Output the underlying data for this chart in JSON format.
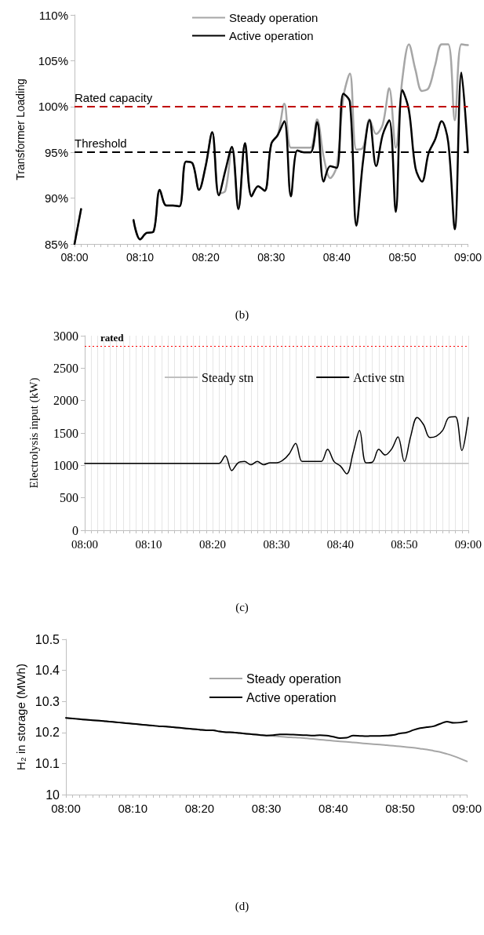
{
  "chart_data": [
    {
      "type": "line",
      "ylabel": "Transformer Loading",
      "categories": [
        "08:00",
        null,
        null,
        null,
        null,
        null,
        null,
        null,
        null,
        null,
        "08:10",
        null,
        null,
        null,
        null,
        null,
        null,
        null,
        null,
        null,
        "08:20",
        null,
        null,
        null,
        null,
        null,
        null,
        null,
        null,
        null,
        "08:30",
        null,
        null,
        null,
        null,
        null,
        null,
        null,
        null,
        null,
        "08:40",
        null,
        null,
        null,
        null,
        null,
        null,
        null,
        null,
        null,
        "08:50",
        null,
        null,
        null,
        null,
        null,
        null,
        null,
        null,
        null,
        "09:00"
      ],
      "series": [
        {
          "name": "Steady operation",
          "color": "#a6a6a6",
          "values": [
            85,
            88.8,
            null,
            null,
            null,
            null,
            null,
            null,
            null,
            87.6,
            85.5,
            86.2,
            86.3,
            90.9,
            89.2,
            89.2,
            89.1,
            94,
            93.8,
            90.9,
            93.5,
            97.2,
            90.5,
            90.8,
            95.6,
            88.8,
            96,
            90.2,
            91.3,
            90.8,
            95.9,
            96.9,
            100.3,
            95.5,
            95.5,
            95.5,
            95.5,
            98.6,
            94.5,
            92.2,
            93.5,
            101,
            103.6,
            95.3,
            95.5,
            98.6,
            97,
            98,
            102,
            95.5,
            103,
            106.8,
            104,
            101.7,
            102,
            104.5,
            106.8,
            106.8,
            98.5,
            106.8,
            106.7
          ]
        },
        {
          "name": "Active operation",
          "color": "#000000",
          "values": [
            85,
            88.8,
            null,
            null,
            null,
            null,
            null,
            null,
            null,
            87.6,
            85.5,
            86.2,
            86.3,
            90.9,
            89.2,
            89.2,
            89.1,
            94,
            93.8,
            90.9,
            93.5,
            97.2,
            90.3,
            93,
            95.6,
            88.8,
            96,
            90.2,
            91.3,
            90.8,
            95.9,
            96.9,
            98.4,
            90.2,
            95.2,
            95,
            95,
            98.3,
            91.8,
            93.5,
            93.3,
            101.4,
            100.5,
            87,
            94,
            98.5,
            93.5,
            96.9,
            98.5,
            88.5,
            101.8,
            99.6,
            93.3,
            91.8,
            94.9,
            96.4,
            98.4,
            96.1,
            86.6,
            103.7,
            95
          ]
        }
      ],
      "ylim": [
        85,
        110
      ],
      "yticks": [
        {
          "value": 85,
          "label": "85%"
        },
        {
          "value": 90,
          "label": "90%"
        },
        {
          "value": 95,
          "label": "95%"
        },
        {
          "value": 100,
          "label": "100%"
        },
        {
          "value": 105,
          "label": "105%"
        },
        {
          "value": 110,
          "label": "110%"
        }
      ],
      "ref_lines": [
        {
          "axis": "y",
          "value": 100,
          "label": "Rated capacity",
          "color": "#c00000",
          "line_style": "dashed"
        },
        {
          "axis": "y",
          "value": 95,
          "label": "Threshold",
          "color": "#000000",
          "line_style": "dashed"
        }
      ],
      "legend": "top",
      "marker": "none",
      "annotations": [
        "(b)"
      ]
    },
    {
      "type": "line",
      "ylabel": "Electrolysis input (kW)",
      "categories": [
        "08:00",
        null,
        null,
        null,
        null,
        null,
        null,
        null,
        null,
        null,
        "08:10",
        null,
        null,
        null,
        null,
        null,
        null,
        null,
        null,
        null,
        "08:20",
        null,
        null,
        null,
        null,
        null,
        null,
        null,
        null,
        null,
        "08:30",
        null,
        null,
        null,
        null,
        null,
        null,
        null,
        null,
        null,
        "08:40",
        null,
        null,
        null,
        null,
        null,
        null,
        null,
        null,
        null,
        "08:50",
        null,
        null,
        null,
        null,
        null,
        null,
        null,
        null,
        null,
        "09:00"
      ],
      "series": [
        {
          "name": "Steady stn",
          "color": "#bfbfbf",
          "values": [
            1030,
            1030,
            1030,
            1030,
            1030,
            1030,
            1030,
            1030,
            1030,
            1030,
            1030,
            1030,
            1030,
            1030,
            1030,
            1030,
            1030,
            1030,
            1030,
            1030,
            1030,
            1030,
            1030,
            1030,
            1030,
            1030,
            1030,
            1030,
            1030,
            1030,
            1030,
            1030,
            1030,
            1030,
            1030,
            1030,
            1030,
            1030,
            1030,
            1030,
            1030,
            1030,
            1030,
            1030,
            1030,
            1030,
            1030,
            1030,
            1030,
            1030,
            1030,
            1030,
            1030,
            1030,
            1030,
            1030,
            1030,
            1030,
            1030,
            1030,
            1030
          ]
        },
        {
          "name": "Active stn",
          "color": "#000000",
          "values": [
            1030,
            1030,
            1030,
            1030,
            1030,
            1030,
            1030,
            1030,
            1030,
            1030,
            1030,
            1030,
            1030,
            1030,
            1030,
            1030,
            1030,
            1030,
            1030,
            1030,
            1030,
            1030,
            1150,
            920,
            1040,
            1060,
            1010,
            1060,
            1010,
            1040,
            1040,
            1080,
            1180,
            1340,
            1060,
            1060,
            1060,
            1060,
            1250,
            1060,
            990,
            870,
            1200,
            1540,
            1040,
            1050,
            1250,
            1160,
            1250,
            1440,
            1060,
            1450,
            1740,
            1630,
            1430,
            1450,
            1540,
            1740,
            1750,
            1230,
            1740
          ]
        }
      ],
      "ylim": [
        0,
        3000
      ],
      "yticks": [
        0,
        500,
        1000,
        1500,
        2000,
        2500,
        3000
      ],
      "ref_lines": [
        {
          "axis": "y",
          "value": 2840,
          "label": "rated",
          "color": "#ff0000",
          "line_style": "dotted"
        }
      ],
      "grid": "x",
      "legend": "top",
      "marker": "none",
      "annotations": [
        "(c)"
      ]
    },
    {
      "type": "line",
      "ylabel": "H₂ in storage (MWh)",
      "categories": [
        "08:00",
        null,
        null,
        null,
        null,
        null,
        null,
        null,
        null,
        null,
        "08:10",
        null,
        null,
        null,
        null,
        null,
        null,
        null,
        null,
        null,
        "08:20",
        null,
        null,
        null,
        null,
        null,
        null,
        null,
        null,
        null,
        "08:30",
        null,
        null,
        null,
        null,
        null,
        null,
        null,
        null,
        null,
        "08:40",
        null,
        null,
        null,
        null,
        null,
        null,
        null,
        null,
        null,
        "08:50",
        null,
        null,
        null,
        null,
        null,
        null,
        null,
        null,
        null,
        "09:00"
      ],
      "series": [
        {
          "name": "Steady operation",
          "color": "#a6a6a6",
          "values": [
            10.247,
            10.245,
            10.243,
            10.241,
            10.239,
            10.238,
            10.236,
            10.234,
            10.232,
            10.23,
            10.228,
            10.226,
            10.224,
            10.222,
            10.22,
            10.219,
            10.217,
            10.215,
            10.213,
            10.211,
            10.209,
            10.207,
            10.207,
            10.203,
            10.201,
            10.2,
            10.198,
            10.196,
            10.194,
            10.192,
            10.19,
            10.189,
            10.187,
            10.185,
            10.184,
            10.183,
            10.181,
            10.179,
            10.177,
            10.175,
            10.173,
            10.171,
            10.17,
            10.168,
            10.166,
            10.164,
            10.162,
            10.161,
            10.159,
            10.157,
            10.155,
            10.153,
            10.151,
            10.148,
            10.145,
            10.141,
            10.137,
            10.131,
            10.124,
            10.116,
            10.107
          ]
        },
        {
          "name": "Active operation",
          "color": "#000000",
          "values": [
            10.247,
            10.245,
            10.243,
            10.241,
            10.239,
            10.238,
            10.236,
            10.234,
            10.232,
            10.23,
            10.228,
            10.226,
            10.224,
            10.222,
            10.22,
            10.219,
            10.217,
            10.215,
            10.213,
            10.211,
            10.209,
            10.207,
            10.207,
            10.203,
            10.201,
            10.2,
            10.198,
            10.196,
            10.194,
            10.192,
            10.19,
            10.191,
            10.194,
            10.194,
            10.193,
            10.192,
            10.191,
            10.19,
            10.191,
            10.19,
            10.186,
            10.182,
            10.183,
            10.19,
            10.189,
            10.188,
            10.189,
            10.189,
            10.19,
            10.192,
            10.197,
            10.2,
            10.208,
            10.214,
            10.217,
            10.22,
            10.228,
            10.235,
            10.231,
            10.232,
            10.236
          ]
        }
      ],
      "ylim": [
        10,
        10.5
      ],
      "yticks": [
        10,
        10.1,
        10.2,
        10.3,
        10.4,
        10.5
      ],
      "legend": "top",
      "marker": "none",
      "annotations": [
        "(d)"
      ]
    }
  ]
}
